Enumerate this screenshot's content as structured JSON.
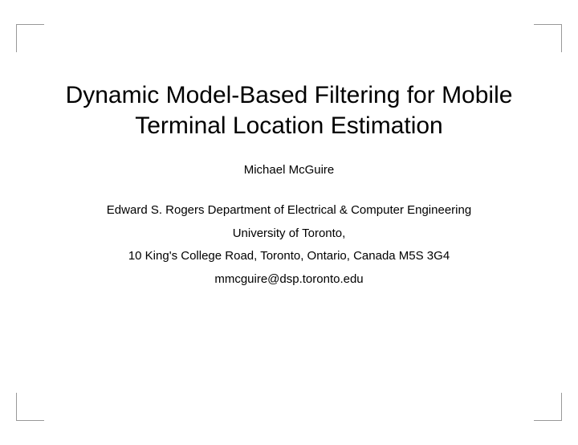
{
  "slide": {
    "title": "Dynamic Model-Based Filtering for Mobile Terminal Location Estimation",
    "author": "Michael McGuire",
    "affiliation": {
      "department": "Edward S. Rogers Department of Electrical & Computer Engineering",
      "university": "University of Toronto,",
      "address": "10 King's College Road, Toronto, Ontario, Canada M5S 3G4",
      "email": "mmcguire@dsp.toronto.edu"
    }
  },
  "style": {
    "background_color": "#ffffff",
    "corner_color": "#999999",
    "text_color": "#000000",
    "title_fontsize": 30,
    "body_fontsize": 15,
    "corner_size": 35
  }
}
